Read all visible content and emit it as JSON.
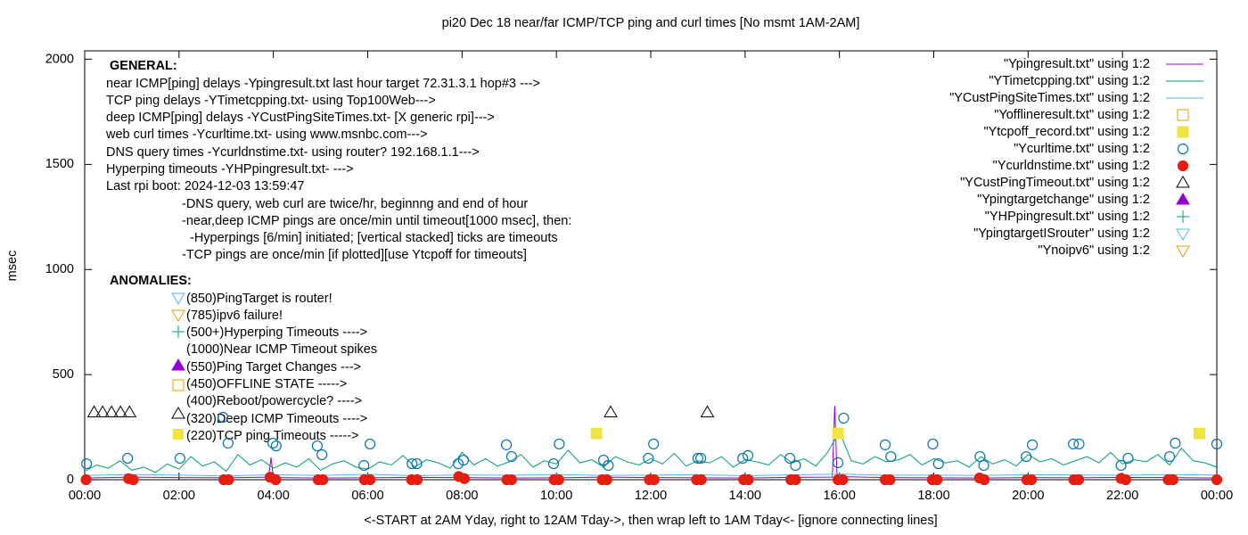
{
  "chart_data": {
    "type": "scatter",
    "title": "pi20 Dec 18  near/far ICMP/TCP ping and curl times [No msmt 1AM-2AM]",
    "ylabel": "msec",
    "xlabel": "<-START at 2AM Yday, right to 12AM Tday->, then wrap left to 1AM Tday<- [ignore connecting lines]",
    "xlim": [
      0,
      24
    ],
    "ylim": [
      0,
      2040
    ],
    "xticks": [
      {
        "value": 0,
        "label": "00:00"
      },
      {
        "value": 2,
        "label": "02:00"
      },
      {
        "value": 4,
        "label": "04:00"
      },
      {
        "value": 6,
        "label": "06:00"
      },
      {
        "value": 8,
        "label": "08:00"
      },
      {
        "value": 10,
        "label": "10:00"
      },
      {
        "value": 12,
        "label": "12:00"
      },
      {
        "value": 14,
        "label": "14:00"
      },
      {
        "value": 16,
        "label": "16:00"
      },
      {
        "value": 18,
        "label": "18:00"
      },
      {
        "value": 20,
        "label": "20:00"
      },
      {
        "value": 22,
        "label": "22:00"
      },
      {
        "value": 24,
        "label": "00:00"
      }
    ],
    "yticks": [
      0,
      500,
      1000,
      1500,
      2000
    ],
    "legend": "top-right",
    "annotations": [
      "GENERAL:",
      "near ICMP[ping] delays -Ypingresult.txt last hour target 72.31.3.1 hop#3 --->",
      "TCP ping delays -YTimetcpping.txt- using Top100Web--->",
      "deep ICMP[ping] delays -YCustPingSiteTimes.txt- [X generic rpi]--->",
      "web curl times -Ycurltime.txt- using www.msnbc.com--->",
      "DNS query times -Ycurldnstime.txt- using router? 192.168.1.1--->",
      "Hyperping timeouts -YHPpingresult.txt- --->",
      "Last rpi boot: 2024-12-03 13:59:47",
      "-DNS query, web curl are twice/hr, beginnng and end of hour",
      "-near,deep ICMP pings are once/min until timeout[1000 msec], then:",
      "-Hyperpings [6/min] initiated; [vertical stacked] ticks are timeouts",
      "-TCP pings are once/min [if plotted][use Ytcpoff for timeouts]",
      "ANOMALIES:",
      "(850)PingTarget is router!",
      "(785)ipv6 failure!",
      "(500+)Hyperping Timeouts ---->",
      "(1000)Near ICMP Timeout spikes",
      "(550)Ping Target Changes --->",
      "(450)OFFLINE STATE ----->",
      "(400)Reboot/powercycle? ---->",
      "(320)Deep ICMP Timeouts ---->",
      "(220)TCP ping Timeouts ----->"
    ],
    "series": [
      {
        "name": "\"Ypingresult.txt\" using 1:2",
        "color": "#9400d3",
        "style": "line",
        "x": [
          0,
          1,
          2,
          3,
          3.9,
          3.95,
          4.0,
          5,
          6,
          7,
          8,
          9,
          10,
          11,
          12,
          13,
          14,
          15,
          15.85,
          15.9,
          15.95,
          17,
          18,
          19,
          20,
          21,
          22,
          23,
          24
        ],
        "values": [
          8,
          12,
          10,
          9,
          12,
          105,
          10,
          8,
          9,
          11,
          10,
          8,
          9,
          12,
          10,
          9,
          8,
          11,
          12,
          352,
          15,
          10,
          9,
          8,
          10,
          9,
          11,
          10,
          8
        ]
      },
      {
        "name": "\"YTimetcpping.txt\" using 1:2",
        "color": "#009e73",
        "style": "line",
        "x": [
          0,
          0.25,
          0.5,
          0.75,
          1,
          1.25,
          1.5,
          1.75,
          2,
          2.25,
          2.5,
          2.75,
          3,
          3.25,
          3.5,
          3.75,
          4,
          4.25,
          4.5,
          4.75,
          5,
          5.25,
          5.5,
          5.75,
          6,
          6.25,
          6.5,
          6.75,
          7,
          7.25,
          7.5,
          7.75,
          8,
          8.25,
          8.5,
          8.75,
          9,
          9.25,
          9.5,
          9.75,
          10,
          10.25,
          10.5,
          10.75,
          11,
          11.25,
          11.5,
          11.75,
          12,
          12.25,
          12.5,
          12.75,
          13,
          13.25,
          13.5,
          13.75,
          14,
          14.25,
          14.5,
          14.75,
          15,
          15.25,
          15.5,
          15.75,
          16,
          16.25,
          16.5,
          16.75,
          17,
          17.25,
          17.5,
          17.75,
          18,
          18.25,
          18.5,
          18.75,
          19,
          19.25,
          19.5,
          19.75,
          20,
          20.25,
          20.5,
          20.75,
          21,
          21.25,
          21.5,
          21.75,
          22,
          22.25,
          22.5,
          22.75,
          23,
          23.25,
          23.5,
          23.75,
          24
        ],
        "values": [
          40,
          70,
          55,
          90,
          45,
          60,
          35,
          75,
          50,
          110,
          65,
          85,
          40,
          120,
          70,
          95,
          55,
          80,
          60,
          100,
          45,
          75,
          90,
          60,
          50,
          85,
          70,
          115,
          60,
          95,
          80,
          55,
          130,
          70,
          100,
          65,
          85,
          120,
          60,
          90,
          75,
          140,
          80,
          95,
          60,
          110,
          85,
          70,
          100,
          75,
          125,
          65,
          90,
          80,
          110,
          60,
          95,
          85,
          70,
          120,
          80,
          100,
          65,
          130,
          230,
          90,
          75,
          110,
          85,
          95,
          120,
          70,
          100,
          80,
          90,
          60,
          110,
          75,
          95,
          65,
          120,
          85,
          100,
          70,
          90,
          110,
          80,
          130,
          75,
          95,
          85,
          120,
          70,
          150,
          90,
          80,
          60
        ]
      },
      {
        "name": "\"YCustPingSiteTimes.txt\" using 1:2",
        "color": "#56b4e9",
        "style": "line",
        "x": [
          0,
          1,
          2,
          3,
          4,
          5,
          6,
          7,
          8,
          9,
          10,
          11,
          12,
          13,
          14,
          15,
          16,
          17,
          18,
          19,
          20,
          21,
          22,
          23,
          24
        ],
        "values": [
          20,
          25,
          22,
          18,
          24,
          20,
          26,
          19,
          23,
          21,
          25,
          20,
          22,
          24,
          19,
          23,
          27,
          21,
          22,
          20,
          24,
          23,
          21,
          25,
          22
        ]
      },
      {
        "name": "\"Yofflineresult.txt\" using 1:2",
        "color": "#e69f00",
        "style": "square-open",
        "x": [],
        "values": []
      },
      {
        "name": "\"Ytcpoff_record.txt\" using 1:2",
        "color": "#f0e442",
        "style": "square-filled",
        "x": [
          10.85,
          15.97,
          23.63
        ],
        "values": [
          220,
          220,
          220
        ]
      },
      {
        "name": "\"Ycurltime.txt\" using 1:2",
        "color": "#0072b2",
        "style": "circle-open",
        "x": [
          0.04,
          0.91,
          2.02,
          2.93,
          3.04,
          3.99,
          4.06,
          4.93,
          5.03,
          5.92,
          6.05,
          6.94,
          7.04,
          7.92,
          8.03,
          8.94,
          9.05,
          9.94,
          10.06,
          11.0,
          11.1,
          11.95,
          12.06,
          13.0,
          13.06,
          13.95,
          14.06,
          14.95,
          15.07,
          15.97,
          16.09,
          16.97,
          17.09,
          17.98,
          18.1,
          18.98,
          19.06,
          19.96,
          20.09,
          20.96,
          21.08,
          21.97,
          22.12,
          23.0,
          23.12,
          24.0
        ],
        "values": [
          76,
          102,
          102,
          297,
          174,
          174,
          161,
          161,
          119,
          68,
          170,
          76,
          76,
          76,
          93,
          166,
          110,
          76,
          170,
          93,
          68,
          102,
          170,
          102,
          102,
          102,
          115,
          102,
          68,
          81,
          293,
          166,
          110,
          170,
          76,
          110,
          68,
          110,
          166,
          170,
          170,
          68,
          102,
          110,
          174,
          170
        ]
      },
      {
        "name": "\"Ycurldnstime.txt\" using 1:2",
        "color": "#e51e10",
        "style": "circle-filled",
        "x": [
          0.03,
          0.93,
          1.03,
          2.95,
          3.05,
          3.93,
          4.05,
          4.95,
          5.05,
          5.93,
          6.05,
          6.93,
          7.05,
          7.93,
          8.05,
          8.95,
          9.05,
          9.95,
          10.05,
          10.97,
          11.07,
          11.97,
          12.07,
          12.97,
          13.07,
          13.97,
          14.07,
          14.97,
          15.07,
          15.97,
          16.07,
          16.97,
          17.07,
          17.97,
          18.07,
          18.97,
          19.07,
          19.97,
          20.07,
          20.97,
          21.07,
          21.97,
          22.07,
          22.97,
          23.07,
          24.0
        ],
        "values": [
          0,
          5,
          0,
          0,
          0,
          12,
          0,
          0,
          0,
          0,
          0,
          0,
          0,
          15,
          5,
          0,
          0,
          0,
          0,
          0,
          0,
          0,
          0,
          0,
          0,
          0,
          0,
          0,
          0,
          0,
          0,
          0,
          0,
          0,
          0,
          8,
          0,
          0,
          0,
          0,
          0,
          6,
          0,
          0,
          0,
          0
        ]
      },
      {
        "name": "\"YCustPingTimeout.txt\" using 1:2",
        "color": "#000000",
        "style": "triangle-open",
        "x": [
          0.2,
          0.38,
          0.57,
          0.76,
          0.95,
          11.15,
          13.2
        ],
        "values": [
          320,
          320,
          320,
          320,
          320,
          320,
          320
        ]
      },
      {
        "name": "\"Ypingtargetchange\" using 1:2",
        "color": "#9400d3",
        "style": "triangle-filled",
        "x": [],
        "values": []
      },
      {
        "name": "\"YHPpingresult.txt\" using 1:2",
        "color": "#009e73",
        "style": "plus",
        "x": [],
        "values": []
      },
      {
        "name": "\"YpingtargetISrouter\" using 1:2",
        "color": "#56b4e9",
        "style": "triangle-down",
        "x": [],
        "values": []
      },
      {
        "name": "\"Ynoipv6\" using 1:2",
        "color": "#e69f00",
        "style": "triangle-down",
        "x": [],
        "values": []
      }
    ]
  }
}
